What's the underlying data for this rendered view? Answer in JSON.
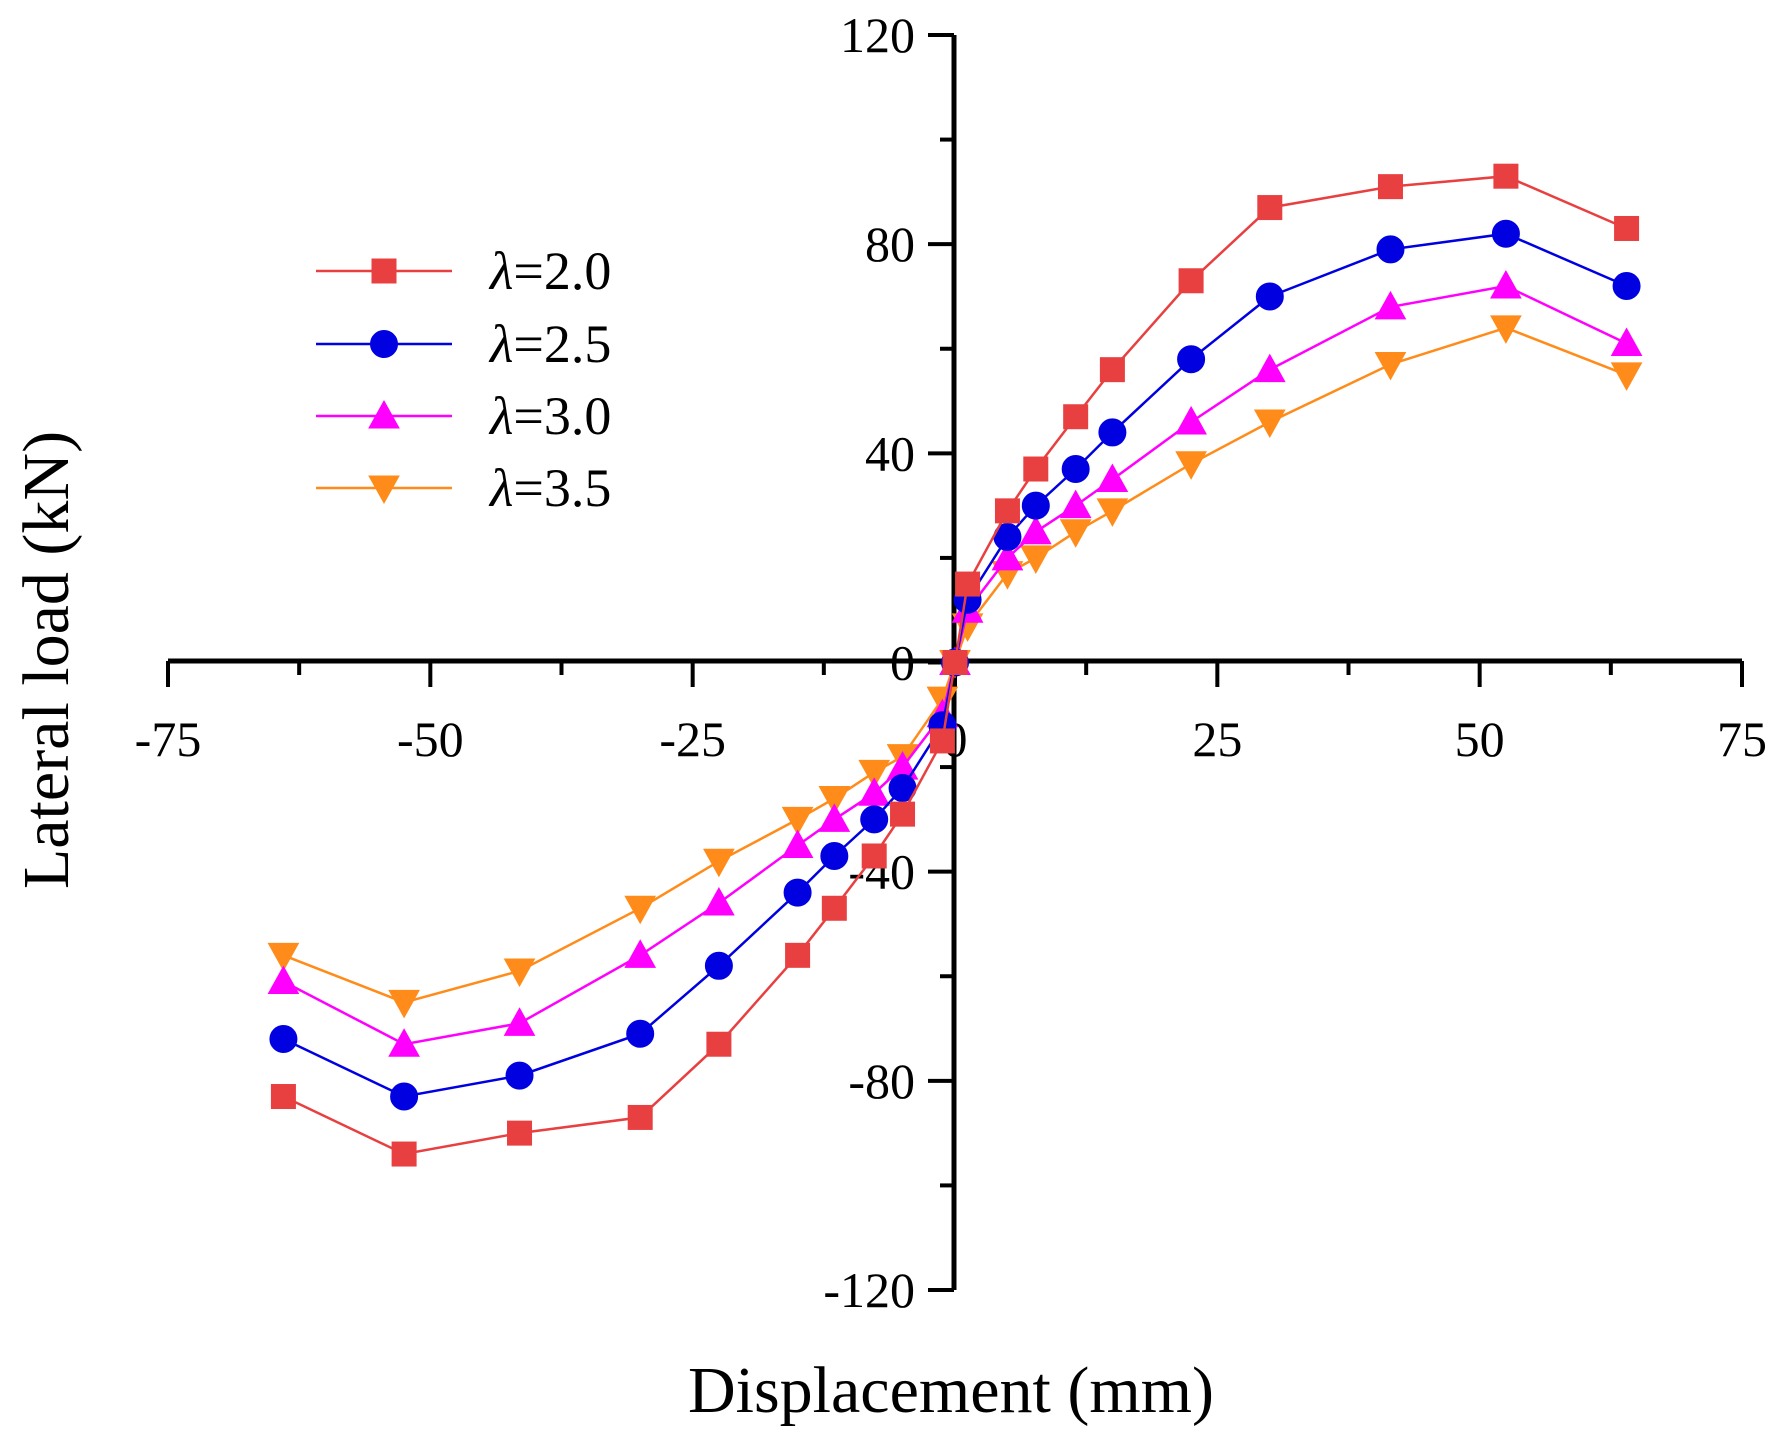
{
  "chart_data": {
    "type": "line",
    "title": "",
    "xlabel": "Displacement (mm)",
    "ylabel": "Lateral load (kN)",
    "xlim": [
      -75,
      75
    ],
    "ylim": [
      -120,
      120
    ],
    "x_ticks": [
      -75,
      -50,
      -25,
      0,
      25,
      50,
      75
    ],
    "y_ticks": [
      -120,
      -80,
      -40,
      0,
      40,
      80,
      120
    ],
    "x_tick_labels": [
      "-75",
      "-50",
      "-25",
      "0",
      "25",
      "50",
      "75"
    ],
    "y_tick_labels": [
      "-120",
      "-80",
      "-40",
      "0",
      "40",
      "80",
      "120"
    ],
    "legend_position": "upper-left",
    "series": [
      {
        "name": "λ=2.0",
        "symbol": "λ",
        "value_text": "=2.0",
        "marker": "square",
        "color": "#e84040",
        "x": [
          -64,
          -52.5,
          -41.5,
          -30,
          -22.5,
          -15,
          -11.5,
          -7.7,
          -5,
          -1.2,
          0,
          1.2,
          5,
          7.7,
          11.5,
          15,
          22.5,
          30,
          41.5,
          52.5,
          64
        ],
        "y": [
          -83,
          -94,
          -90,
          -87,
          -73,
          -56,
          -47,
          -37,
          -29,
          -15,
          0,
          15,
          29,
          37,
          47,
          56,
          73,
          87,
          91,
          93,
          83
        ]
      },
      {
        "name": "λ=2.5",
        "symbol": "λ",
        "value_text": "=2.5",
        "marker": "circle",
        "color": "#0000e0",
        "x": [
          -64,
          -52.5,
          -41.5,
          -30,
          -22.5,
          -15,
          -11.5,
          -7.7,
          -5,
          -1.2,
          0,
          1.2,
          5,
          7.7,
          11.5,
          15,
          22.5,
          30,
          41.5,
          52.5,
          64
        ],
        "y": [
          -72,
          -83,
          -79,
          -71,
          -58,
          -44,
          -37,
          -30,
          -24,
          -12,
          0,
          12,
          24,
          30,
          37,
          44,
          58,
          70,
          79,
          82,
          72
        ]
      },
      {
        "name": "λ=3.0",
        "symbol": "λ",
        "value_text": "=3.0",
        "marker": "triangle-up",
        "color": "#ff00ff",
        "x": [
          -64,
          -52.5,
          -41.5,
          -30,
          -22.5,
          -15,
          -11.5,
          -7.7,
          -5,
          -1.2,
          0,
          1.2,
          5,
          7.7,
          11.5,
          15,
          22.5,
          30,
          41.5,
          52.5,
          64
        ],
        "y": [
          -61,
          -73,
          -69,
          -56,
          -46,
          -35,
          -30,
          -25,
          -20,
          -10,
          0,
          10,
          20,
          25,
          30,
          35,
          46,
          56,
          68,
          72,
          61
        ]
      },
      {
        "name": "λ=3.5",
        "symbol": "λ",
        "value_text": "=3.5",
        "marker": "triangle-down",
        "color": "#ff8c1a",
        "x": [
          -64,
          -52.5,
          -41.5,
          -30,
          -22.5,
          -15,
          -11.5,
          -7.7,
          -5,
          -1.2,
          0,
          1.2,
          5,
          7.7,
          11.5,
          15,
          22.5,
          30,
          41.5,
          52.5,
          64
        ],
        "y": [
          -56,
          -65,
          -59,
          -47,
          -38,
          -30,
          -26,
          -21,
          -18,
          -7,
          0,
          7,
          17,
          20,
          25,
          29,
          38,
          46,
          57,
          64,
          55
        ]
      }
    ]
  }
}
